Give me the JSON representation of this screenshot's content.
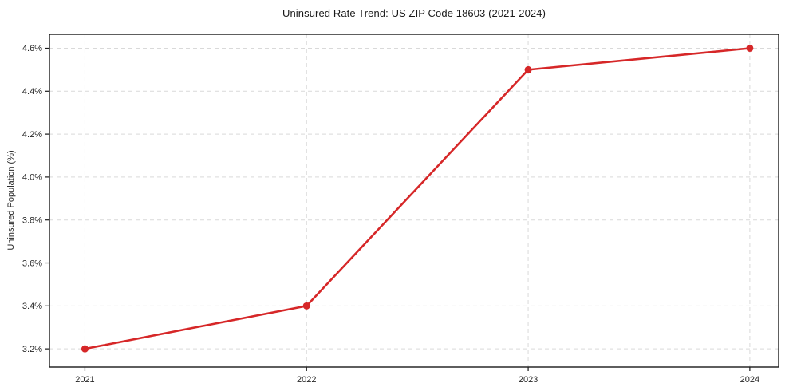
{
  "chart_data": {
    "type": "line",
    "title": "Uninsured Rate Trend: US ZIP Code 18603 (2021-2024)",
    "xlabel": "",
    "ylabel": "Uninsured Population (%)",
    "x": [
      2021,
      2022,
      2023,
      2024
    ],
    "values": [
      3.2,
      3.4,
      4.5,
      4.6
    ],
    "xticks": {
      "values": [
        2021,
        2022,
        2023,
        2024
      ],
      "labels": [
        "2021",
        "2022",
        "2023",
        "2024"
      ]
    },
    "yticks": {
      "values": [
        3.2,
        3.4,
        3.6,
        3.8,
        4.0,
        4.2,
        4.4,
        4.6
      ],
      "labels": [
        "3.2%",
        "3.4%",
        "3.6%",
        "3.8%",
        "4.0%",
        "4.2%",
        "4.4%",
        "4.6%"
      ]
    },
    "xlim": [
      2020.84,
      2024.13
    ],
    "ylim": [
      3.115,
      4.665
    ],
    "grid": true,
    "grid_style": "dashed",
    "legend": "none",
    "marker": "circle",
    "marker_radius": 4.5,
    "line_width": 2.6,
    "line_color": "#d62728",
    "grid_color": "#d9d9d9",
    "spine_color": "#1a1a1a",
    "tick_color": "#1a1a1a",
    "text_color": "#262626",
    "background": "#ffffff"
  }
}
